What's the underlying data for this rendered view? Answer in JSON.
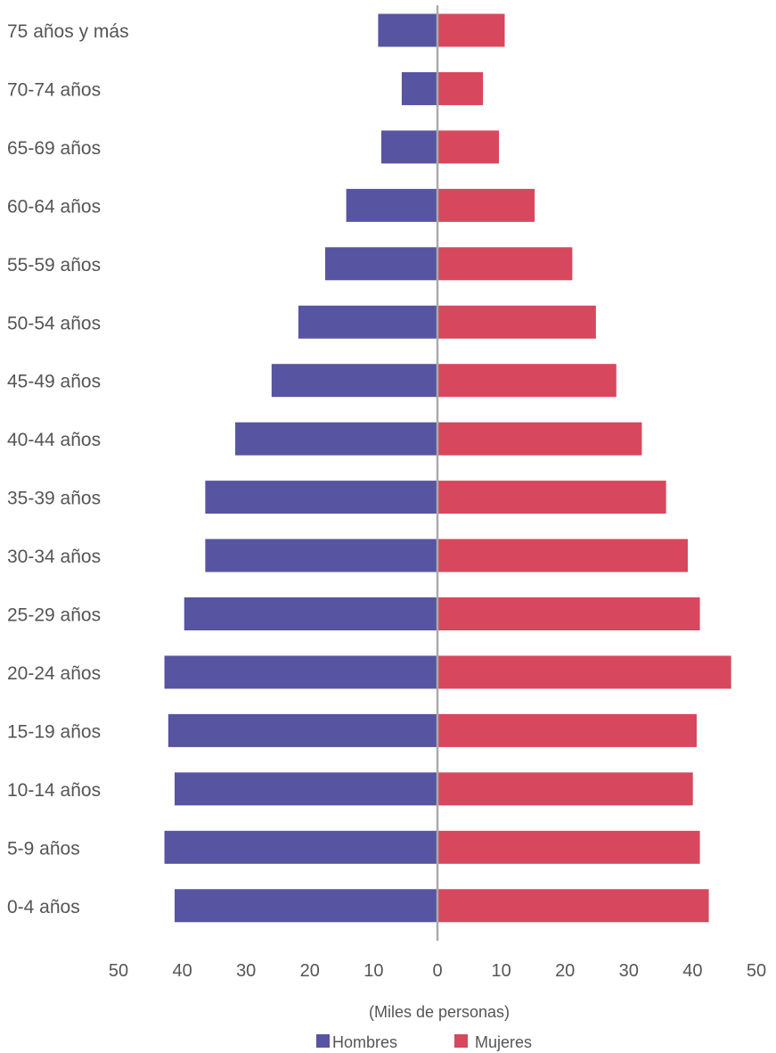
{
  "chart_data": {
    "type": "bar",
    "orientation": "horizontal",
    "variant": "population-pyramid",
    "categories": [
      "75 años y más",
      "70-74 años",
      "65-69 años",
      "60-64 años",
      "55-59 años",
      "50-54 años",
      "45-49 años",
      "40-44 años",
      "35-39 años",
      "30-34 años",
      "25-29 años",
      "20-24 años",
      "15-19 años",
      "10-14 años",
      "5-9 años",
      "0-4 años"
    ],
    "series": [
      {
        "name": "Hombres",
        "color": "#5754a1",
        "side": "left",
        "values": [
          9.3,
          5.6,
          8.8,
          14.3,
          17.6,
          21.8,
          26.0,
          31.7,
          36.4,
          36.4,
          39.7,
          42.8,
          42.2,
          41.2,
          42.8,
          41.2
        ]
      },
      {
        "name": "Mujeres",
        "color": "#d7475d",
        "side": "right",
        "values": [
          10.4,
          7.0,
          9.5,
          15.1,
          21.0,
          24.7,
          27.9,
          31.9,
          35.7,
          39.1,
          41.0,
          45.9,
          40.5,
          39.9,
          41.0,
          42.4
        ]
      }
    ],
    "xlim": [
      -50,
      50
    ],
    "xticks": [
      -50,
      -40,
      -30,
      -20,
      -10,
      0,
      10,
      20,
      30,
      40,
      50
    ],
    "xtick_labels": [
      "50",
      "40",
      "30",
      "20",
      "10",
      "0",
      "10",
      "20",
      "30",
      "40",
      "50"
    ],
    "xlabel": "(Miles de personas)",
    "legend": {
      "placement": "bottom-center",
      "entries": [
        "Hombres",
        "Mujeres"
      ]
    },
    "grid": false,
    "center_line_color": "#aaaaaa"
  }
}
